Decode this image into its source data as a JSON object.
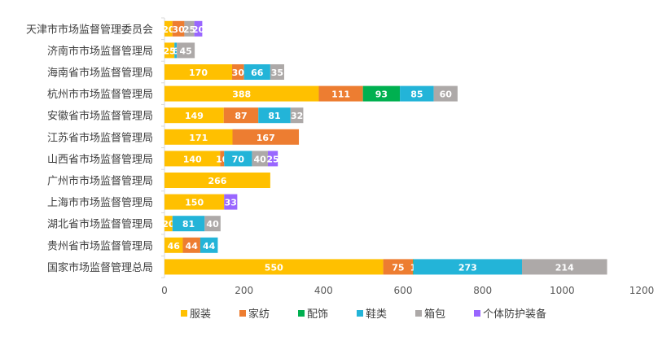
{
  "chart_data": {
    "type": "bar",
    "orientation": "horizontal",
    "stacked": true,
    "categories": [
      "天津市市场监督管理委员会",
      "济南市市场监督管理局",
      "海南省市场监督管理局",
      "杭州市市场监督管理局",
      "安徽省市场监督管理局",
      "江苏省市场监督管理局",
      "山西省市场监督管理局",
      "广州市市场监督管理局",
      "上海市市场监督管理局",
      "湖北省市场监督管理局",
      "贵州省市场监督管理局",
      "国家市场监督管理总局"
    ],
    "series": [
      {
        "name": "服装",
        "color": "#FFC000",
        "values": [
          20,
          25,
          170,
          388,
          149,
          171,
          140,
          266,
          150,
          20,
          46,
          550
        ]
      },
      {
        "name": "家纺",
        "color": "#ED7D31",
        "values": [
          30,
          null,
          30,
          111,
          87,
          167,
          10,
          null,
          null,
          null,
          44,
          75
        ]
      },
      {
        "name": "配饰",
        "color": "#00B050",
        "values": [
          null,
          null,
          null,
          93,
          null,
          null,
          null,
          null,
          null,
          null,
          null,
          1
        ]
      },
      {
        "name": "鞋类",
        "color": "#23B4D8",
        "values": [
          null,
          6,
          66,
          85,
          81,
          null,
          70,
          null,
          null,
          81,
          44,
          273
        ]
      },
      {
        "name": "箱包",
        "color": "#ADA9A8",
        "values": [
          25,
          45,
          35,
          60,
          32,
          null,
          40,
          null,
          null,
          40,
          null,
          214
        ]
      },
      {
        "name": "个体防护装备",
        "color": "#9966FF",
        "values": [
          20,
          null,
          null,
          null,
          null,
          null,
          25,
          null,
          33,
          null,
          null,
          null
        ]
      }
    ],
    "xlim": [
      0,
      1200
    ],
    "xticks": [
      "0",
      "200",
      "400",
      "600",
      "800",
      "1000",
      "1200"
    ],
    "grid": false,
    "legend": "bottom"
  }
}
